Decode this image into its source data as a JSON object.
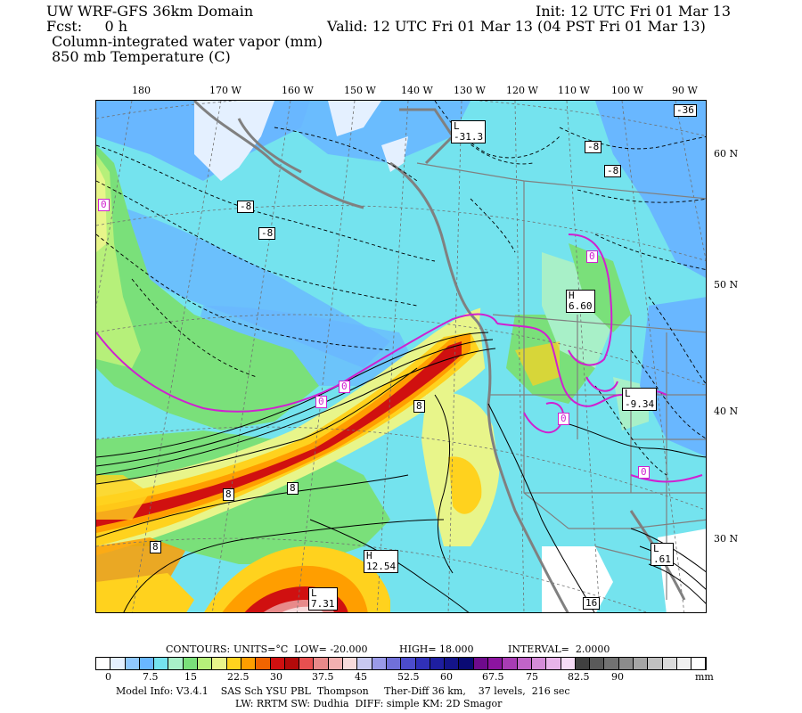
{
  "header": {
    "line1_left": "UW WRF-GFS 36km Domain",
    "line1_right": "Init: 12 UTC Fri 01 Mar 13",
    "line2_left": "Fcst:     0 h",
    "line2_right": "Valid: 12 UTC Fri 01 Mar 13 (04 PST Fri 01 Mar 13)",
    "line3": "Column-integrated water vapor (mm)",
    "line4": "850 mb Temperature (C)"
  },
  "lon_labels": [
    "180",
    "170 W",
    "160 W",
    "150 W",
    "140 W",
    "130 W",
    "120 W",
    "110 W",
    "100 W",
    "90 W"
  ],
  "lat_labels": [
    "60 N",
    "50 N",
    "40 N",
    "30 N"
  ],
  "map_labels": {
    "l_north": [
      "L",
      "-31.3"
    ],
    "h_inland": [
      "H",
      "6.60"
    ],
    "l_great_basin": [
      "L",
      "-9.34"
    ],
    "h_pacific": [
      "H",
      "12.54"
    ],
    "l_south": [
      "L",
      "7.31"
    ],
    "l_mexico": [
      "L",
      ".61"
    ],
    "contours": [
      "-8",
      "-8",
      "-8",
      "-8",
      "-36",
      "0",
      "0",
      "0",
      "0",
      "0",
      "0",
      "8",
      "8",
      "8",
      "8",
      "16"
    ]
  },
  "contour_info": {
    "contours": "CONTOURS:",
    "units": "UNITS=°C",
    "low": "LOW= -20.000",
    "high": "HIGH= 18.000",
    "interval": "INTERVAL=  2.0000"
  },
  "colorbar": {
    "colors": [
      "#ffffff",
      "#e4f0ff",
      "#8fc8ff",
      "#69b7ff",
      "#74e3ee",
      "#a8f0c8",
      "#7ae07a",
      "#b6f07a",
      "#e8f58a",
      "#ffd21e",
      "#ff9e00",
      "#f06400",
      "#d01010",
      "#b40a0a",
      "#e85050",
      "#e88a8a",
      "#f2b0b0",
      "#f8dada",
      "#c8c8f0",
      "#9a9ae8",
      "#7070d8",
      "#4c4ccc",
      "#3030b8",
      "#1e1ea0",
      "#14148a",
      "#0a0a74",
      "#6e0a8c",
      "#8c14a0",
      "#a83cb4",
      "#c064c8",
      "#d48cd8",
      "#e8b4ea",
      "#f6dcf6",
      "#404040",
      "#5a5a5a",
      "#727272",
      "#8c8c8c",
      "#a6a6a6",
      "#c0c0c0",
      "#dadada",
      "#f0f0f0",
      "#ffffff"
    ],
    "labels": [
      "0",
      "7.5",
      "15",
      "22.5",
      "30",
      "37.5",
      "45",
      "52.5",
      "60",
      "67.5",
      "75",
      "82.5",
      "90",
      "mm"
    ]
  },
  "footer": {
    "line1": "Model Info: V3.4.1    SAS Sch YSU PBL  Thompson     Ther-Diff 36 km,    37 levels,  216 sec",
    "line2": "LW: RRTM SW: Dudhia  DIFF: simple KM: 2D Smagor"
  }
}
